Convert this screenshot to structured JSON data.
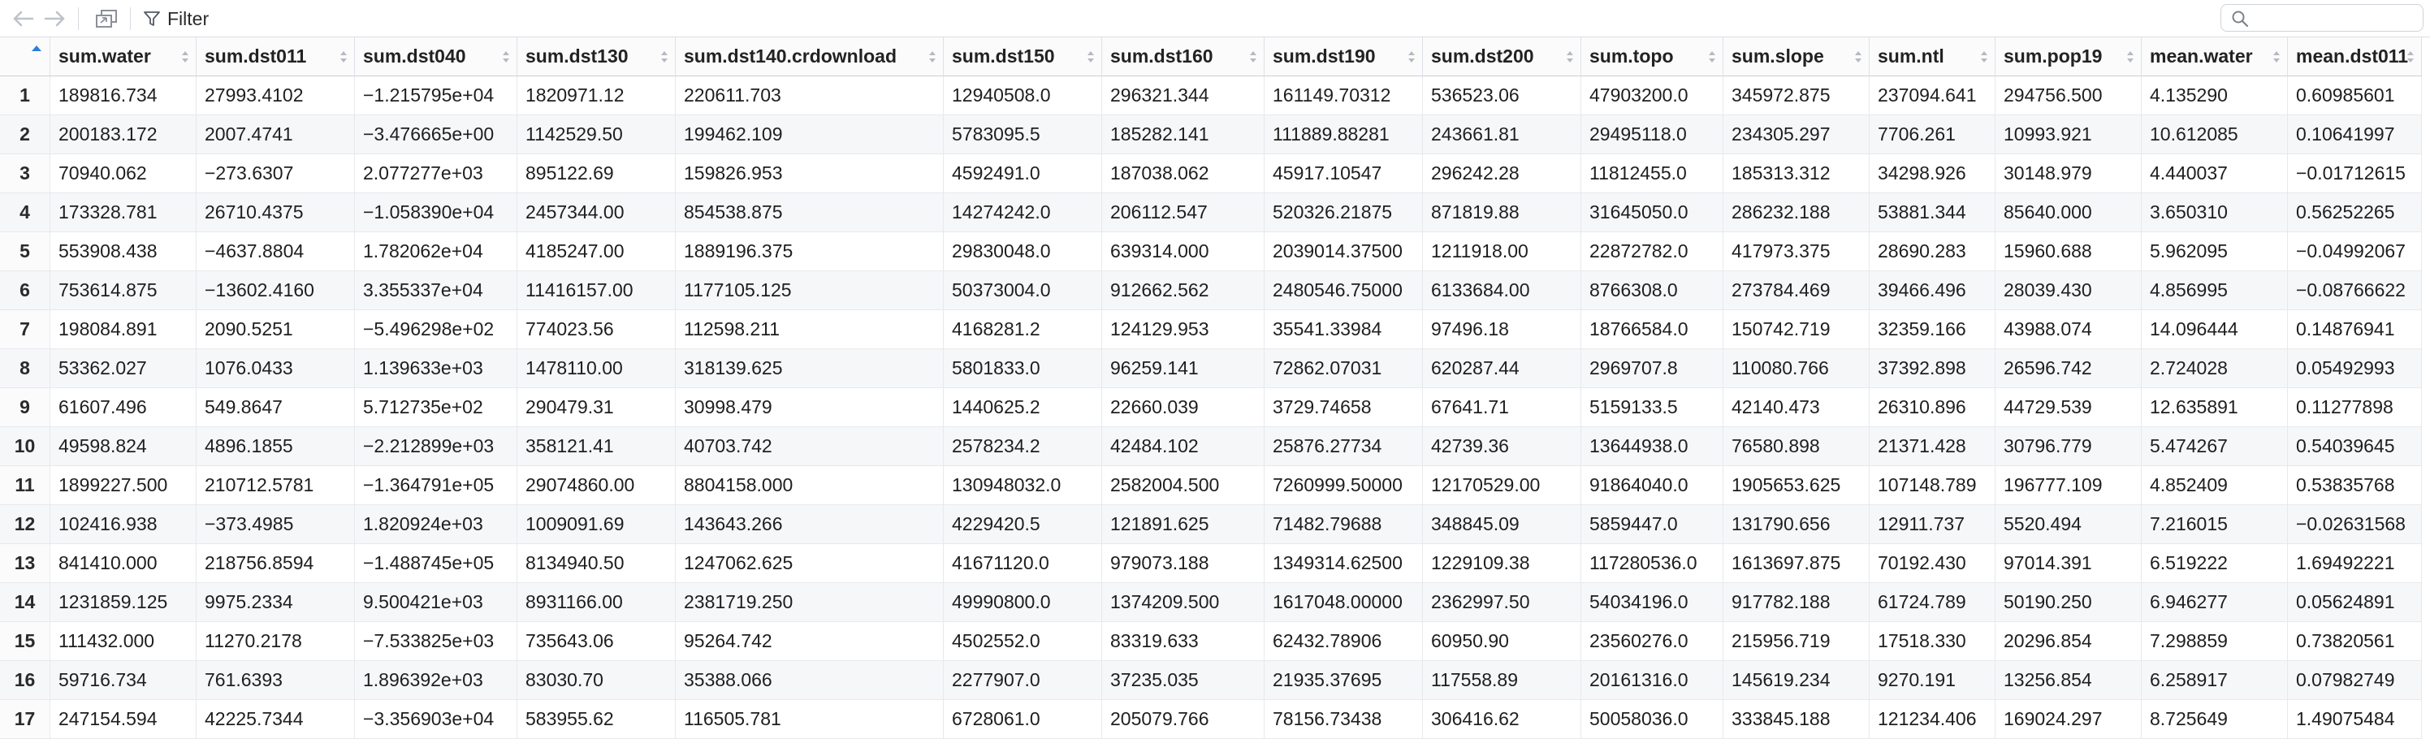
{
  "toolbar": {
    "filter_label": "Filter",
    "search_placeholder": ""
  },
  "columns": [
    "sum.water",
    "sum.dst011",
    "sum.dst040",
    "sum.dst130",
    "sum.dst140.crdownload",
    "sum.dst150",
    "sum.dst160",
    "sum.dst190",
    "sum.dst200",
    "sum.topo",
    "sum.slope",
    "sum.ntl",
    "sum.pop19",
    "mean.water",
    "mean.dst011"
  ],
  "rows": [
    {
      "n": "1",
      "v": [
        "189816.734",
        "27993.4102",
        "−1.215795e+04",
        "1820971.12",
        "220611.703",
        "12940508.0",
        "296321.344",
        "161149.70312",
        "536523.06",
        "47903200.0",
        "345972.875",
        "237094.641",
        "294756.500",
        "4.135290",
        "0.60985601"
      ]
    },
    {
      "n": "2",
      "v": [
        "200183.172",
        "2007.4741",
        "−3.476665e+00",
        "1142529.50",
        "199462.109",
        "5783095.5",
        "185282.141",
        "111889.88281",
        "243661.81",
        "29495118.0",
        "234305.297",
        "7706.261",
        "10993.921",
        "10.612085",
        "0.10641997"
      ]
    },
    {
      "n": "3",
      "v": [
        "70940.062",
        "−273.6307",
        "2.077277e+03",
        "895122.69",
        "159826.953",
        "4592491.0",
        "187038.062",
        "45917.10547",
        "296242.28",
        "11812455.0",
        "185313.312",
        "34298.926",
        "30148.979",
        "4.440037",
        "−0.01712615"
      ]
    },
    {
      "n": "4",
      "v": [
        "173328.781",
        "26710.4375",
        "−1.058390e+04",
        "2457344.00",
        "854538.875",
        "14274242.0",
        "206112.547",
        "520326.21875",
        "871819.88",
        "31645050.0",
        "286232.188",
        "53881.344",
        "85640.000",
        "3.650310",
        "0.56252265"
      ]
    },
    {
      "n": "5",
      "v": [
        "553908.438",
        "−4637.8804",
        "1.782062e+04",
        "4185247.00",
        "1889196.375",
        "29830048.0",
        "639314.000",
        "2039014.37500",
        "1211918.00",
        "22872782.0",
        "417973.375",
        "28690.283",
        "15960.688",
        "5.962095",
        "−0.04992067"
      ]
    },
    {
      "n": "6",
      "v": [
        "753614.875",
        "−13602.4160",
        "3.355337e+04",
        "11416157.00",
        "1177105.125",
        "50373004.0",
        "912662.562",
        "2480546.75000",
        "6133684.00",
        "8766308.0",
        "273784.469",
        "39466.496",
        "28039.430",
        "4.856995",
        "−0.08766622"
      ]
    },
    {
      "n": "7",
      "v": [
        "198084.891",
        "2090.5251",
        "−5.496298e+02",
        "774023.56",
        "112598.211",
        "4168281.2",
        "124129.953",
        "35541.33984",
        "97496.18",
        "18766584.0",
        "150742.719",
        "32359.166",
        "43988.074",
        "14.096444",
        "0.14876941"
      ]
    },
    {
      "n": "8",
      "v": [
        "53362.027",
        "1076.0433",
        "1.139633e+03",
        "1478110.00",
        "318139.625",
        "5801833.0",
        "96259.141",
        "72862.07031",
        "620287.44",
        "2969707.8",
        "110080.766",
        "37392.898",
        "26596.742",
        "2.724028",
        "0.05492993"
      ]
    },
    {
      "n": "9",
      "v": [
        "61607.496",
        "549.8647",
        "5.712735e+02",
        "290479.31",
        "30998.479",
        "1440625.2",
        "22660.039",
        "3729.74658",
        "67641.71",
        "5159133.5",
        "42140.473",
        "26310.896",
        "44729.539",
        "12.635891",
        "0.11277898"
      ]
    },
    {
      "n": "10",
      "v": [
        "49598.824",
        "4896.1855",
        "−2.212899e+03",
        "358121.41",
        "40703.742",
        "2578234.2",
        "42484.102",
        "25876.27734",
        "42739.36",
        "13644938.0",
        "76580.898",
        "21371.428",
        "30796.779",
        "5.474267",
        "0.54039645"
      ]
    },
    {
      "n": "11",
      "v": [
        "1899227.500",
        "210712.5781",
        "−1.364791e+05",
        "29074860.00",
        "8804158.000",
        "130948032.0",
        "2582004.500",
        "7260999.50000",
        "12170529.00",
        "91864040.0",
        "1905653.625",
        "107148.789",
        "196777.109",
        "4.852409",
        "0.53835768"
      ]
    },
    {
      "n": "12",
      "v": [
        "102416.938",
        "−373.4985",
        "1.820924e+03",
        "1009091.69",
        "143643.266",
        "4229420.5",
        "121891.625",
        "71482.79688",
        "348845.09",
        "5859447.0",
        "131790.656",
        "12911.737",
        "5520.494",
        "7.216015",
        "−0.02631568"
      ]
    },
    {
      "n": "13",
      "v": [
        "841410.000",
        "218756.8594",
        "−1.488745e+05",
        "8134940.50",
        "1247062.625",
        "41671120.0",
        "979073.188",
        "1349314.62500",
        "1229109.38",
        "117280536.0",
        "1613697.875",
        "70192.430",
        "97014.391",
        "6.519222",
        "1.69492221"
      ]
    },
    {
      "n": "14",
      "v": [
        "1231859.125",
        "9975.2334",
        "9.500421e+03",
        "8931166.00",
        "2381719.250",
        "49990800.0",
        "1374209.500",
        "1617048.00000",
        "2362997.50",
        "54034196.0",
        "917782.188",
        "61724.789",
        "50190.250",
        "6.946277",
        "0.05624891"
      ]
    },
    {
      "n": "15",
      "v": [
        "111432.000",
        "11270.2178",
        "−7.533825e+03",
        "735643.06",
        "95264.742",
        "4502552.0",
        "83319.633",
        "62432.78906",
        "60950.90",
        "23560276.0",
        "215956.719",
        "17518.330",
        "20296.854",
        "7.298859",
        "0.73820561"
      ]
    },
    {
      "n": "16",
      "v": [
        "59716.734",
        "761.6393",
        "1.896392e+03",
        "83030.70",
        "35388.066",
        "2277907.0",
        "37235.035",
        "21935.37695",
        "117558.89",
        "20161316.0",
        "145619.234",
        "9270.191",
        "13256.854",
        "6.258917",
        "0.07982749"
      ]
    },
    {
      "n": "17",
      "v": [
        "247154.594",
        "42225.7344",
        "−3.356903e+04",
        "583955.62",
        "116505.781",
        "6728061.0",
        "205079.766",
        "78156.73438",
        "306416.62",
        "50058036.0",
        "333845.188",
        "121234.406",
        "169024.297",
        "8.725649",
        "1.49075484"
      ]
    }
  ]
}
